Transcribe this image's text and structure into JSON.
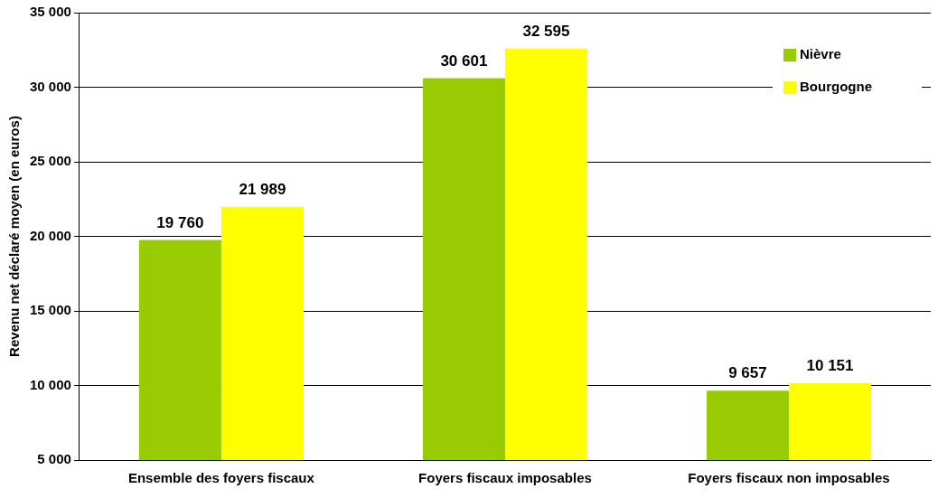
{
  "chart_data": {
    "type": "bar",
    "ylabel": "Revenu net déclaré moyen (en euros)",
    "categories": [
      "Ensemble des foyers fiscaux",
      "Foyers fiscaux imposables",
      "Foyers fiscaux non imposables"
    ],
    "series": [
      {
        "name": "Nièvre",
        "color": "#99cc00",
        "values": [
          19760,
          30601,
          9657
        ],
        "value_labels": [
          "19 760",
          "30 601",
          "9 657"
        ]
      },
      {
        "name": "Bourgogne",
        "color": "#ffff00",
        "values": [
          21989,
          32595,
          10151
        ],
        "value_labels": [
          "21 989",
          "32 595",
          "10 151"
        ]
      }
    ],
    "ylim": [
      5000,
      35000
    ],
    "yticks": [
      {
        "value": 5000,
        "label": "5 000"
      },
      {
        "value": 10000,
        "label": "10 000"
      },
      {
        "value": 15000,
        "label": "15 000"
      },
      {
        "value": 20000,
        "label": "20 000"
      },
      {
        "value": 25000,
        "label": "25 000"
      },
      {
        "value": 30000,
        "label": "30 000"
      },
      {
        "value": 35000,
        "label": "35 000"
      }
    ],
    "grid": "y",
    "legend": "top right"
  }
}
